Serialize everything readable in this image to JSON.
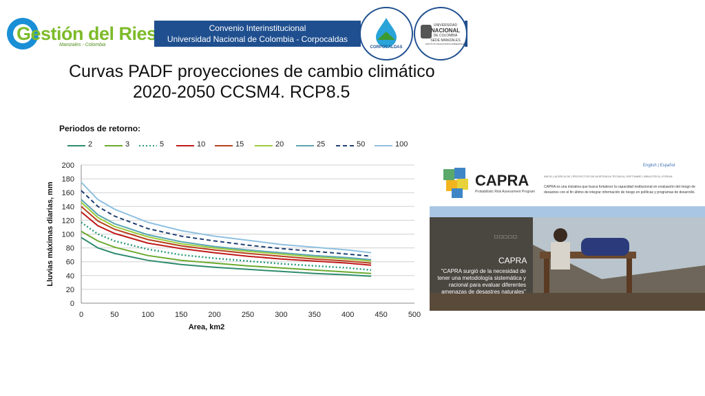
{
  "header": {
    "logo_text": "Gestión del Riesgo",
    "logo_sub": "Manizales - Colombia",
    "banner_line1": "Convenio Interinstitucional",
    "banner_line2": "Universidad Nacional de Colombia - Corpocaldas",
    "seal_corpocaldas": "CORPOCALDAS",
    "seal_unal_1": "UNIVERSIDAD",
    "seal_unal_2": "NACIONAL",
    "seal_unal_3": "DE COLOMBIA",
    "seal_unal_4": "SEDE MANIZALES",
    "seal_unal_5": "INSTITUTO DE ESTUDIOS AMBIENTALES"
  },
  "slide": {
    "title_line1": "Curvas PADF proyecciones de cambio climático",
    "title_line2": "2020-2050 CCSM4. RCP8.5",
    "periods_label": "Periodos de retorno:"
  },
  "chart_data": {
    "type": "line",
    "xlabel": "Area, km2",
    "ylabel": "Lluvias máximas diarias, mm",
    "xlim": [
      0,
      500
    ],
    "ylim": [
      0,
      200
    ],
    "xticks": [
      0,
      50,
      100,
      150,
      200,
      250,
      300,
      350,
      400,
      450,
      500
    ],
    "yticks": [
      0,
      20,
      40,
      60,
      80,
      100,
      120,
      140,
      160,
      180,
      200
    ],
    "grid": "horizontal",
    "legend_position": "top",
    "x": [
      0,
      25,
      50,
      100,
      150,
      200,
      250,
      300,
      350,
      400,
      435
    ],
    "series": [
      {
        "name": "2",
        "color": "#2e8b6e",
        "style": "solid",
        "values": [
          95,
          80,
          72,
          62,
          56,
          52,
          49,
          46,
          43,
          41,
          39
        ]
      },
      {
        "name": "3",
        "color": "#6aaa2e",
        "style": "solid",
        "values": [
          104,
          90,
          81,
          69,
          62,
          58,
          54,
          51,
          48,
          45,
          43
        ]
      },
      {
        "name": "5",
        "color": "#2a9a7a",
        "style": "dotted",
        "values": [
          117,
          100,
          90,
          78,
          70,
          65,
          61,
          57,
          54,
          51,
          48
        ]
      },
      {
        "name": "10",
        "color": "#c01818",
        "style": "solid",
        "values": [
          132,
          112,
          101,
          87,
          79,
          73,
          68,
          64,
          61,
          58,
          55
        ]
      },
      {
        "name": "15",
        "color": "#b8401c",
        "style": "solid",
        "values": [
          140,
          119,
          107,
          92,
          83,
          77,
          72,
          68,
          64,
          61,
          58
        ]
      },
      {
        "name": "20",
        "color": "#9ccc3c",
        "style": "solid",
        "values": [
          146,
          124,
          111,
          96,
          86,
          80,
          75,
          71,
          67,
          64,
          61
        ]
      },
      {
        "name": "25",
        "color": "#5aa6b0",
        "style": "solid",
        "values": [
          150,
          128,
          115,
          99,
          89,
          82,
          77,
          73,
          69,
          66,
          63
        ]
      },
      {
        "name": "50",
        "color": "#1e3f73",
        "style": "dashed",
        "values": [
          163,
          140,
          126,
          108,
          97,
          90,
          84,
          79,
          75,
          71,
          68
        ]
      },
      {
        "name": "100",
        "color": "#8fc0e0",
        "style": "solid",
        "values": [
          175,
          150,
          136,
          117,
          105,
          97,
          91,
          85,
          81,
          77,
          73
        ]
      }
    ]
  },
  "capra": {
    "brand": "CAPRA",
    "brand_sub": "Probabilistic Risk Assessment Program",
    "lang": "English | Español",
    "nav": "INICIO | ACERCA DE | PROYECTOS DE ASISTENCIA TÉCNICA | SOFTWARE | BIBLIOTECA | FORUM",
    "description": "CAPRA es una iniciativa que busca fortalecer la capacidad institucional en evaluación del riesgo de desastres con el fin último de integrar información de riesgo en políticas y programas de desarrollo.",
    "photo_title": "CAPRA",
    "quote": "\"CAPRA surgió de la necesidad de tener una metodología sistemática y racional para evaluar diferentes amenazas de desastres naturales\"",
    "slider_dots": "□□□□□"
  }
}
